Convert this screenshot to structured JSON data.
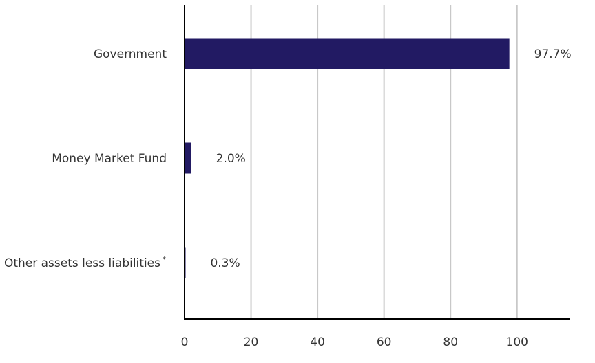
{
  "chart_data": {
    "type": "bar",
    "orientation": "horizontal",
    "categories": [
      "Government",
      "Money Market Fund",
      "Other assets less liabilities"
    ],
    "category_footnote_marks": [
      "",
      "",
      "*"
    ],
    "values": [
      97.7,
      2.0,
      0.3
    ],
    "value_labels": [
      "97.7%",
      "2.0%",
      "0.3%"
    ],
    "x_ticks": [
      0,
      20,
      40,
      60,
      80,
      100
    ],
    "xlim": [
      0,
      116
    ],
    "grid": "vertical",
    "legend": "none",
    "bar_color": "#221a63",
    "grid_color": "#c8c8c8",
    "axis_color": "#000000"
  }
}
